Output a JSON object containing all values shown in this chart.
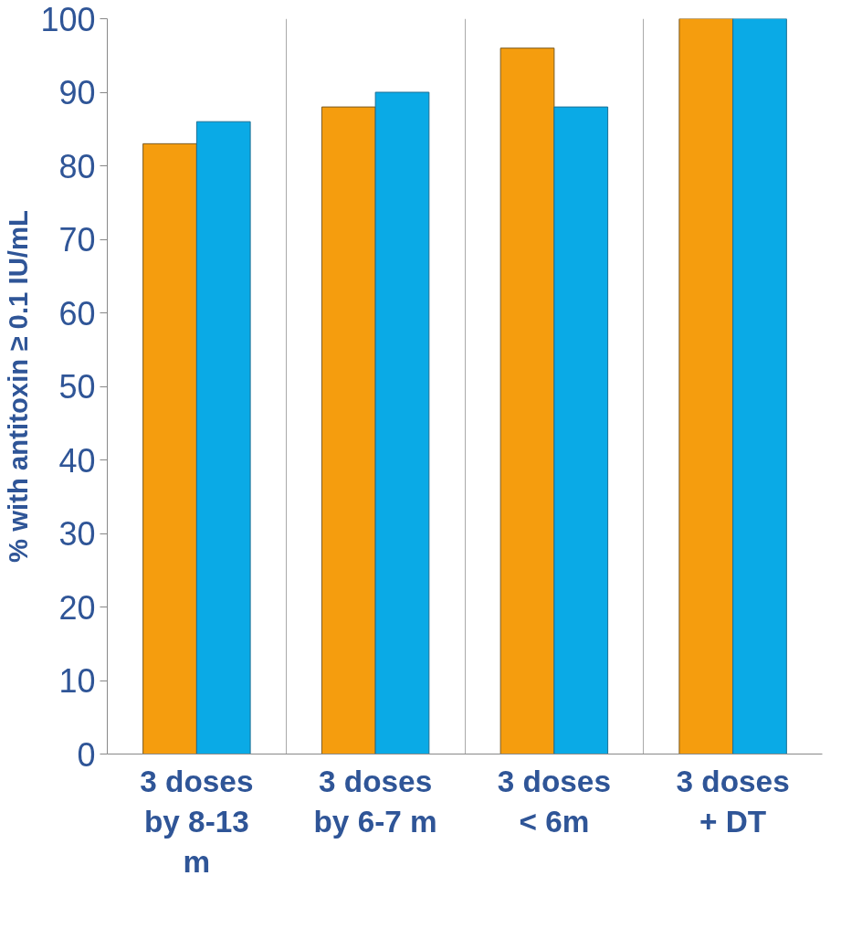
{
  "chart_data": {
    "type": "bar",
    "ylabel": "% with antitoxin ≥ 0.1 IU/mL",
    "categories": [
      "3 doses by 8-13 m",
      "3 doses by 6-7 m",
      "3 doses < 6m",
      "3 doses + DT"
    ],
    "series": [
      {
        "color": "#f59d0e",
        "values": [
          83,
          88,
          96,
          100
        ]
      },
      {
        "color": "#0aaae6",
        "values": [
          86,
          90,
          88,
          100
        ]
      }
    ],
    "ylim": [
      0,
      100
    ],
    "yticks": [
      0,
      10,
      20,
      30,
      40,
      50,
      60,
      70,
      80,
      90,
      100
    ],
    "grid": "x"
  }
}
